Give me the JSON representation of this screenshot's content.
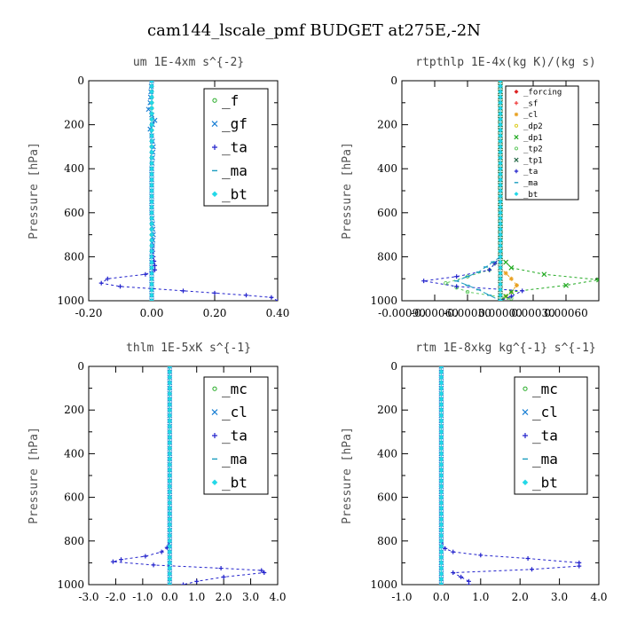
{
  "figure": {
    "title": "cam144_lscale_pmf  BUDGET at275E,-2N"
  },
  "chart_data": [
    {
      "type": "line",
      "title": "um  1E-4xm s^{-2}",
      "ylabel": "Pressure [hPa]",
      "xlim": [
        -0.2,
        0.4
      ],
      "ylim": [
        1000,
        0
      ],
      "xticks": [
        "-0.20",
        "0.00",
        "0.20",
        "0.40"
      ],
      "xtick_values": [
        -0.2,
        0.0,
        0.2,
        0.4
      ],
      "yticks": [
        "0",
        "200",
        "400",
        "600",
        "800",
        "1000"
      ],
      "ytick_values": [
        0,
        200,
        400,
        600,
        800,
        1000
      ],
      "legend": {
        "placement": "top-right",
        "font_size": 16
      },
      "series": [
        {
          "name": "_f",
          "color": "#22aa22",
          "marker": "circle",
          "dash": "none",
          "x": [
            0,
            0,
            0,
            0,
            0,
            0,
            0
          ],
          "y": [
            0,
            200,
            400,
            600,
            800,
            950,
            1000
          ]
        },
        {
          "name": "_gf",
          "color": "#1a7fd4",
          "marker": "cross",
          "dash": "3,3",
          "x": [
            0,
            -0.005,
            -0.01,
            0.01,
            -0.005,
            0,
            0.005,
            0,
            0,
            0,
            0.005,
            0,
            0
          ],
          "y": [
            0,
            100,
            130,
            180,
            220,
            250,
            300,
            400,
            500,
            600,
            700,
            800,
            1000
          ]
        },
        {
          "name": "_ta",
          "color": "#2222cc",
          "marker": "plus",
          "dash": "3,3",
          "x": [
            0,
            0,
            0,
            0,
            0,
            0,
            0.005,
            0.01,
            0.01,
            0,
            -0.02,
            -0.14,
            -0.16,
            -0.1,
            0.1,
            0.2,
            0.3,
            0.38,
            0.4
          ],
          "y": [
            0,
            200,
            400,
            500,
            600,
            700,
            800,
            840,
            860,
            870,
            880,
            900,
            920,
            935,
            955,
            965,
            975,
            985,
            1000
          ]
        },
        {
          "name": "_ma",
          "color": "#1a9cbf",
          "marker": "dash",
          "dash": "6,3",
          "x": [
            0,
            0,
            0,
            0
          ],
          "y": [
            0,
            400,
            800,
            1000
          ]
        },
        {
          "name": "_bt",
          "color": "#22d8e8",
          "marker": "diamond",
          "dash": "none",
          "x": [
            0,
            0,
            0,
            0,
            0,
            0,
            0
          ],
          "y": [
            0,
            200,
            400,
            600,
            800,
            900,
            1000
          ]
        }
      ]
    },
    {
      "type": "line",
      "title": "rtpthlp  1E-4x(kg K)/(kg s)",
      "ylabel": "Pressure [hPa]",
      "xlim": [
        -0.0009,
        0.0009
      ],
      "ylim": [
        1000,
        0
      ],
      "xticks": [
        "-0.00090",
        "-0.00060",
        "-0.00030",
        "0.00000",
        "0.00030",
        "0.00060"
      ],
      "xtick_values": [
        -0.0009,
        -0.0006,
        -0.0003,
        0.0,
        0.0003,
        0.0006
      ],
      "yticks": [
        "0",
        "200",
        "400",
        "600",
        "800",
        "1000"
      ],
      "ytick_values": [
        0,
        200,
        400,
        600,
        800,
        1000
      ],
      "legend": {
        "placement": "top-right",
        "font_size": 9
      },
      "series": [
        {
          "name": "_forcing",
          "color": "#dd2222",
          "marker": "diamond",
          "dash": "none",
          "x": [
            0,
            0,
            0,
            0
          ],
          "y": [
            0,
            400,
            800,
            1000
          ]
        },
        {
          "name": "_sf",
          "color": "#ee3333",
          "marker": "plus",
          "dash": "none",
          "x": [
            0,
            0,
            0,
            0
          ],
          "y": [
            0,
            400,
            800,
            1000
          ]
        },
        {
          "name": "_cl",
          "color": "#e8a020",
          "marker": "star",
          "dash": "3,3",
          "x": [
            0,
            0,
            0,
            0.0001,
            0.00015,
            0.0001,
            0
          ],
          "y": [
            0,
            400,
            850,
            900,
            930,
            960,
            1000
          ]
        },
        {
          "name": "_dp2",
          "color": "#ddcc22",
          "marker": "circle",
          "dash": "none",
          "x": [
            0,
            0,
            0,
            0,
            0
          ],
          "y": [
            0,
            400,
            800,
            950,
            1000
          ]
        },
        {
          "name": "_dp1",
          "color": "#22aa22",
          "marker": "cross",
          "dash": "3,3",
          "x": [
            0,
            0,
            0,
            0.0001,
            0.0004,
            0.0009,
            0.0006,
            0.0001,
            0
          ],
          "y": [
            0,
            400,
            800,
            850,
            880,
            905,
            930,
            960,
            1000
          ]
        },
        {
          "name": "_tp2",
          "color": "#66cc66",
          "marker": "circle",
          "dash": "3,3",
          "x": [
            0,
            0,
            -0.0001,
            -0.0003,
            -0.0005,
            -0.0003,
            0.0001,
            0
          ],
          "y": [
            0,
            800,
            860,
            890,
            920,
            960,
            990,
            1000
          ]
        },
        {
          "name": "_tp1",
          "color": "#226644",
          "marker": "cross",
          "dash": "none",
          "x": [
            0,
            0,
            0,
            0
          ],
          "y": [
            0,
            400,
            800,
            1000
          ]
        },
        {
          "name": "_ta",
          "color": "#2222cc",
          "marker": "plus",
          "dash": "3,3",
          "x": [
            0,
            0,
            -0.0001,
            -0.0004,
            -0.0007,
            -0.0004,
            0.0002,
            0.0001,
            0
          ],
          "y": [
            0,
            800,
            860,
            890,
            910,
            935,
            955,
            980,
            1000
          ]
        },
        {
          "name": "_ma",
          "color": "#1a9cbf",
          "marker": "dash",
          "dash": "6,3",
          "x": [
            0,
            0,
            -0.0002,
            -0.0004,
            -0.0002,
            0
          ],
          "y": [
            0,
            800,
            870,
            910,
            950,
            1000
          ]
        },
        {
          "name": "_bt",
          "color": "#22d8e8",
          "marker": "diamond",
          "dash": "none",
          "x": [
            0,
            0,
            0,
            0
          ],
          "y": [
            0,
            400,
            800,
            1000
          ]
        }
      ]
    },
    {
      "type": "line",
      "title": "thlm  1E-5xK s^{-1}",
      "ylabel": "Pressure [hPa]",
      "xlim": [
        -3.0,
        4.0
      ],
      "ylim": [
        1000,
        0
      ],
      "xticks": [
        "-3.0",
        "-2.0",
        "-1.0",
        "0.0",
        "1.0",
        "2.0",
        "3.0",
        "4.0"
      ],
      "xtick_values": [
        -3,
        -2,
        -1,
        0,
        1,
        2,
        3,
        4
      ],
      "yticks": [
        "0",
        "200",
        "400",
        "600",
        "800",
        "1000"
      ],
      "ytick_values": [
        0,
        200,
        400,
        600,
        800,
        1000
      ],
      "legend": {
        "placement": "top-right",
        "font_size": 16
      },
      "series": [
        {
          "name": "_mc",
          "color": "#22aa22",
          "marker": "circle",
          "dash": "none",
          "x": [
            0,
            0,
            0,
            0,
            0,
            0
          ],
          "y": [
            0,
            200,
            400,
            600,
            800,
            1000
          ]
        },
        {
          "name": "_cl",
          "color": "#1a7fd4",
          "marker": "cross",
          "dash": "3,3",
          "x": [
            0,
            0,
            0,
            0,
            0
          ],
          "y": [
            0,
            300,
            600,
            900,
            1000
          ]
        },
        {
          "name": "_ta",
          "color": "#2222cc",
          "marker": "plus",
          "dash": "3,3",
          "x": [
            0,
            0,
            0,
            0,
            0,
            -0.1,
            -0.3,
            -0.9,
            -1.8,
            -2.1,
            -0.6,
            1.9,
            3.4,
            3.5,
            2.0,
            1.0,
            0.5
          ],
          "y": [
            0,
            200,
            400,
            600,
            800,
            830,
            850,
            870,
            885,
            895,
            910,
            925,
            935,
            945,
            965,
            985,
            1000
          ]
        },
        {
          "name": "_ma",
          "color": "#1a9cbf",
          "marker": "dash",
          "dash": "6,3",
          "x": [
            0,
            0,
            0,
            0
          ],
          "y": [
            0,
            400,
            800,
            1000
          ]
        },
        {
          "name": "_bt",
          "color": "#22d8e8",
          "marker": "diamond",
          "dash": "none",
          "x": [
            0,
            0,
            0,
            0,
            0,
            0
          ],
          "y": [
            0,
            200,
            400,
            600,
            800,
            1000
          ]
        }
      ]
    },
    {
      "type": "line",
      "title": "rtm  1E-8xkg kg^{-1} s^{-1}",
      "ylabel": "Pressure [hPa]",
      "xlim": [
        -1.0,
        4.0
      ],
      "ylim": [
        1000,
        0
      ],
      "xticks": [
        "-1.0",
        "0.0",
        "1.0",
        "2.0",
        "3.0",
        "4.0"
      ],
      "xtick_values": [
        -1,
        0,
        1,
        2,
        3,
        4
      ],
      "yticks": [
        "0",
        "200",
        "400",
        "600",
        "800",
        "1000"
      ],
      "ytick_values": [
        0,
        200,
        400,
        600,
        800,
        1000
      ],
      "legend": {
        "placement": "top-right",
        "font_size": 16
      },
      "series": [
        {
          "name": "_mc",
          "color": "#22aa22",
          "marker": "circle",
          "dash": "none",
          "x": [
            0,
            0,
            0,
            0,
            0,
            0
          ],
          "y": [
            0,
            200,
            400,
            600,
            800,
            1000
          ]
        },
        {
          "name": "_cl",
          "color": "#1a7fd4",
          "marker": "cross",
          "dash": "3,3",
          "x": [
            0,
            0,
            0,
            0,
            0
          ],
          "y": [
            0,
            300,
            600,
            900,
            1000
          ]
        },
        {
          "name": "_ta",
          "color": "#2222cc",
          "marker": "plus",
          "dash": "3,3",
          "x": [
            0,
            0,
            0,
            0,
            0,
            0.1,
            0.3,
            1.0,
            2.2,
            3.5,
            3.5,
            2.3,
            0.3,
            0.5,
            0.7,
            0.7
          ],
          "y": [
            0,
            200,
            400,
            600,
            800,
            835,
            850,
            865,
            880,
            900,
            915,
            930,
            945,
            965,
            985,
            1000
          ]
        },
        {
          "name": "_ma",
          "color": "#1a9cbf",
          "marker": "dash",
          "dash": "6,3",
          "x": [
            0,
            0,
            0,
            0
          ],
          "y": [
            0,
            400,
            800,
            1000
          ]
        },
        {
          "name": "_bt",
          "color": "#22d8e8",
          "marker": "diamond",
          "dash": "none",
          "x": [
            0,
            0,
            0,
            0,
            0,
            0
          ],
          "y": [
            0,
            200,
            400,
            600,
            800,
            1000
          ]
        }
      ]
    }
  ]
}
